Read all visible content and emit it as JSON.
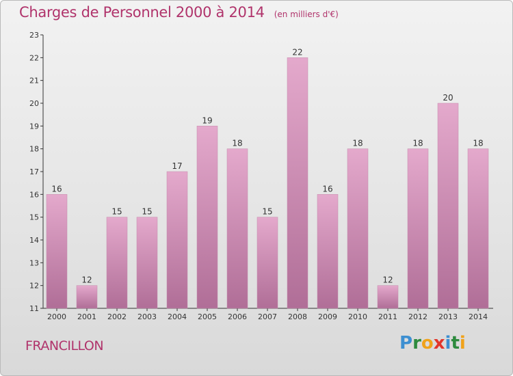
{
  "header": {
    "title": "Charges de Personnel 2000 à 2014",
    "subtitle": "(en milliers d'€)"
  },
  "footer": {
    "place": "FRANCILLON",
    "logo_letters": [
      {
        "ch": "P",
        "color": "#3d8fd1"
      },
      {
        "ch": "r",
        "color": "#2e8b3e"
      },
      {
        "ch": "o",
        "color": "#f0a21b"
      },
      {
        "ch": "x",
        "color": "#e2362b"
      },
      {
        "ch": "i",
        "color": "#3d8fd1"
      },
      {
        "ch": "t",
        "color": "#2e8b3e"
      },
      {
        "ch": "i",
        "color": "#f0a21b"
      }
    ]
  },
  "chart_data": {
    "type": "bar",
    "title": "Charges de Personnel 2000 à 2014",
    "subtitle": "(en milliers d'€)",
    "categories": [
      "2000",
      "2001",
      "2002",
      "2003",
      "2004",
      "2005",
      "2006",
      "2007",
      "2008",
      "2009",
      "2010",
      "2011",
      "2012",
      "2013",
      "2014"
    ],
    "values": [
      16,
      12,
      15,
      15,
      17,
      19,
      18,
      15,
      22,
      16,
      18,
      12,
      18,
      20,
      18
    ],
    "ylim": [
      11,
      23
    ],
    "yticks": [
      11,
      12,
      13,
      14,
      15,
      16,
      17,
      18,
      19,
      20,
      21,
      22,
      23
    ],
    "grid": false,
    "bar_color_top": "#e4a9cc",
    "bar_color_bottom": "#b06e97"
  }
}
